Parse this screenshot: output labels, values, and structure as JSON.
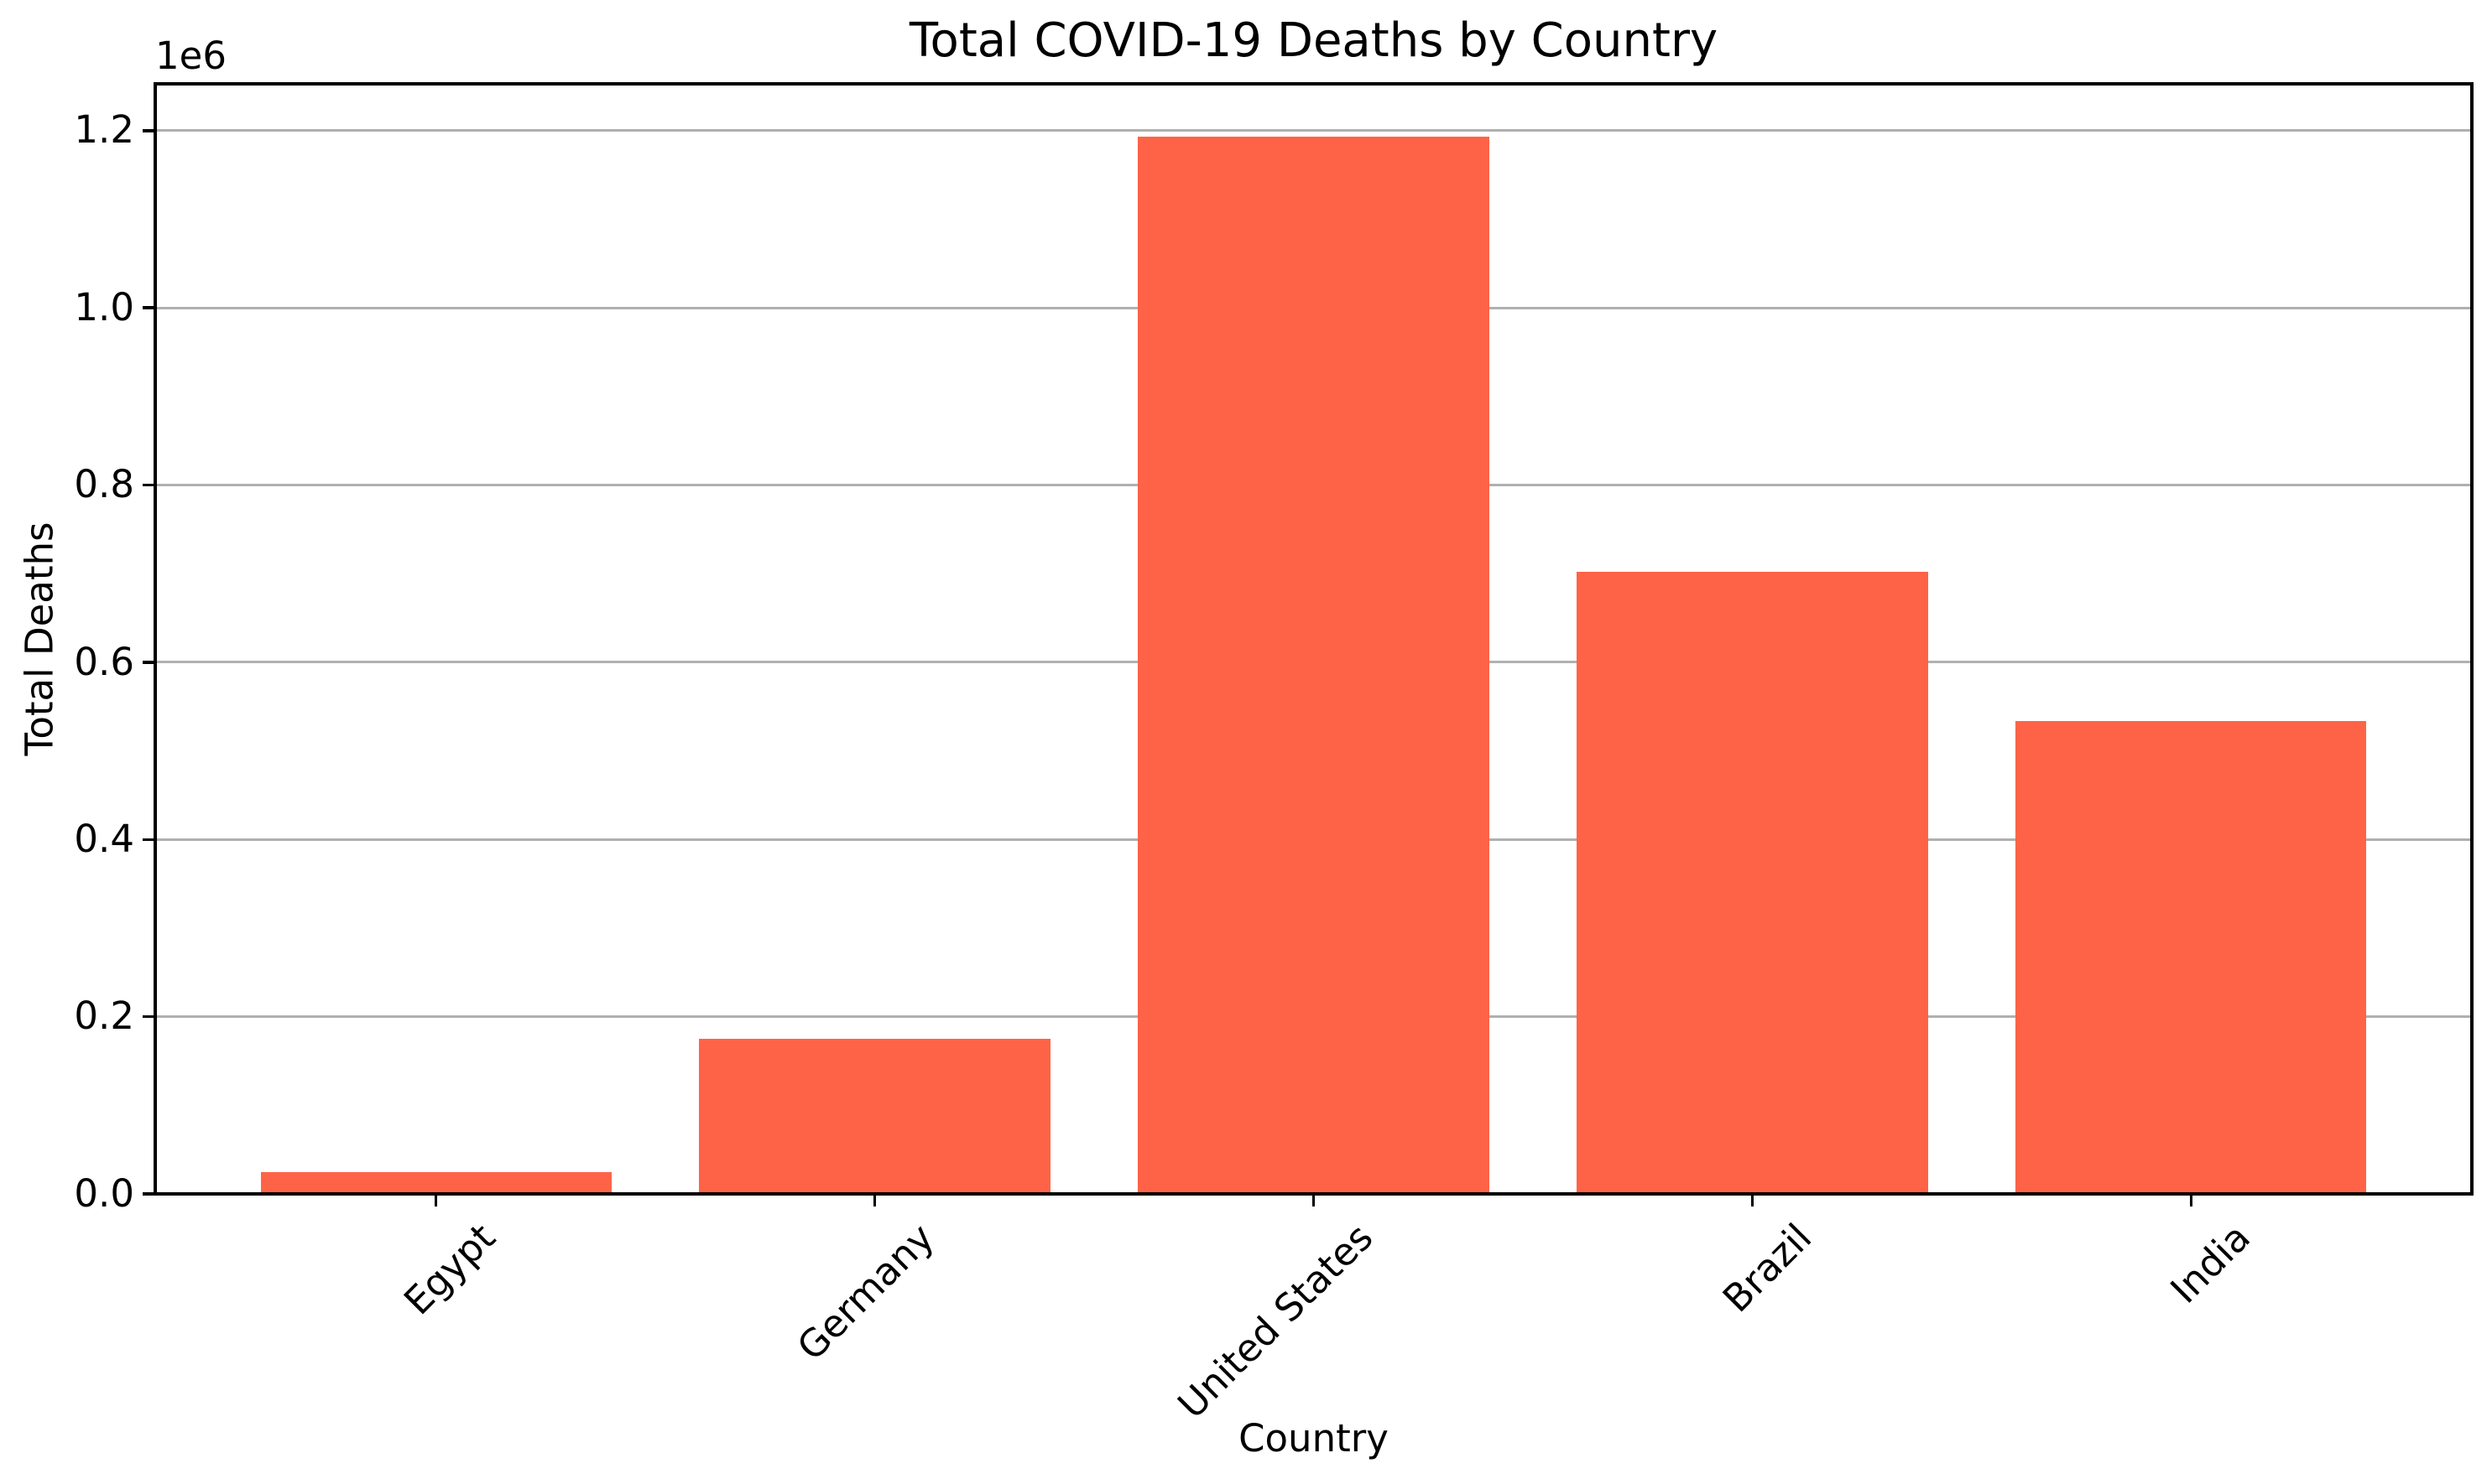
{
  "chart_data": {
    "type": "bar",
    "title": "Total COVID-19 Deaths by Country",
    "xlabel": "Country",
    "ylabel": "Total Deaths",
    "y_axis_offset_label": "1e6",
    "categories": [
      "Egypt",
      "Germany",
      "United States",
      "Brazil",
      "India"
    ],
    "values": [
      24830,
      174979,
      1193165,
      702116,
      533570
    ],
    "ylim": [
      0,
      1252823
    ],
    "yticks": [
      0,
      200000,
      400000,
      600000,
      800000,
      1000000,
      1200000
    ],
    "ytick_labels": [
      "0.0",
      "0.2",
      "0.4",
      "0.6",
      "0.8",
      "1.0",
      "1.2"
    ],
    "x_tick_rotation_degrees": 45,
    "bar_width_fraction": 0.8,
    "grid": "horizontal-on",
    "legend": "none",
    "colors": {
      "bar": "#FF6347",
      "grid": "#b0b0b0",
      "axis": "#000000",
      "text": "#000000",
      "background": "#ffffff"
    }
  }
}
